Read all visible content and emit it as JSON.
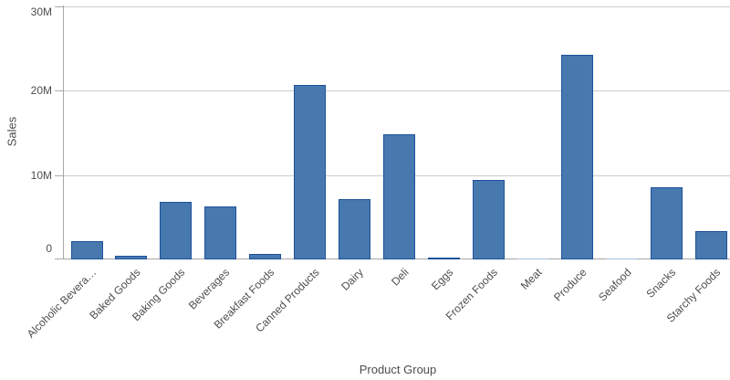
{
  "chart_data": {
    "type": "bar",
    "title": "",
    "xlabel": "Product Group",
    "ylabel": "Sales",
    "categories": [
      "Alcoholic Bevera…",
      "Baked Goods",
      "Baking Goods",
      "Beverages",
      "Breakfast Foods",
      "Canned Products",
      "Dairy",
      "Deli",
      "Eggs",
      "Frozen Foods",
      "Meat",
      "Produce",
      "Seafood",
      "Snacks",
      "Starchy Foods"
    ],
    "values": [
      2200000,
      450000,
      6800000,
      6300000,
      600000,
      20700000,
      7200000,
      14800000,
      250000,
      9400000,
      160000,
      24300000,
      70000,
      8600000,
      3400000
    ],
    "ylim": [
      0,
      30000000
    ],
    "yticks": [
      {
        "value": 0,
        "label": "0"
      },
      {
        "value": 10000000,
        "label": "10M"
      },
      {
        "value": 20000000,
        "label": "20M"
      },
      {
        "value": 30000000,
        "label": "30M"
      }
    ],
    "grid": true,
    "legend_position": "none",
    "colors": {
      "bar_fill": "#4779af",
      "bar_border": "#1d529b",
      "bar_fill_thin": "#a3bedd",
      "gridline": "#cccccc",
      "axis_line": "#a6a6a6",
      "tick_line": "#ababab",
      "label_text": "#4d4d4d"
    }
  }
}
